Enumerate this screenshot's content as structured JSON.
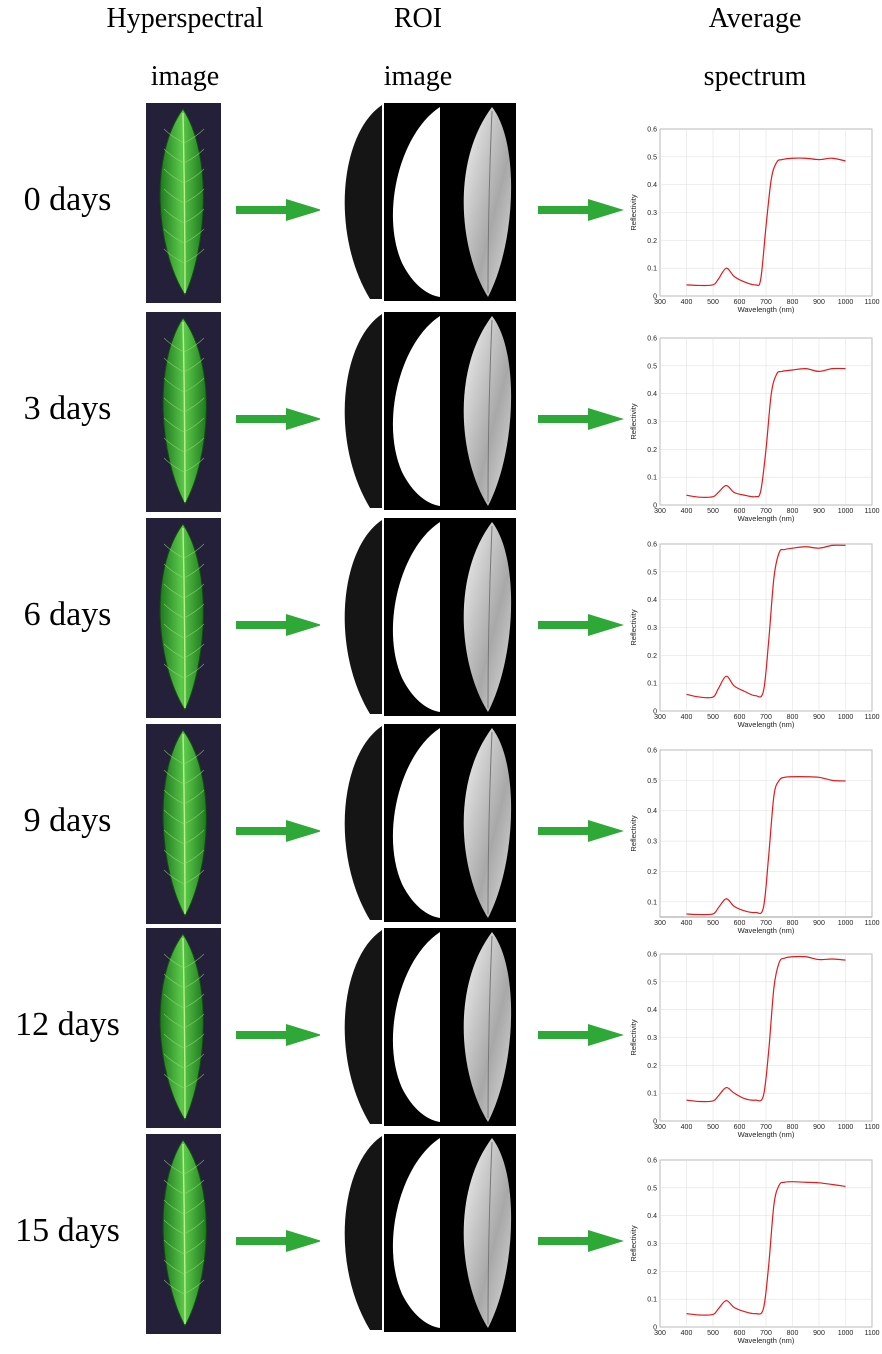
{
  "headers": {
    "col1_line1": "Hyperspectral",
    "col1_line2": "image",
    "col2_line1": "ROI",
    "col2_line2": "image",
    "col3_line1": "Average",
    "col3_line2": "spectrum"
  },
  "colors": {
    "arrow": "#2ea836",
    "spectrum": "#e31a1c",
    "leaf_dark": "#1f7a1f",
    "leaf_light": "#5cc94a",
    "background_photo": "#24203a"
  },
  "rows": [
    {
      "label": "0 days"
    },
    {
      "label": "3 days"
    },
    {
      "label": "6 days"
    },
    {
      "label": "9 days"
    },
    {
      "label": "12 days"
    },
    {
      "label": "15 days"
    }
  ],
  "chart_data": [
    {
      "type": "line",
      "xlabel": "Wavelength (nm)",
      "ylabel": "Reflectivity",
      "xlim": [
        300,
        1100
      ],
      "ylim": [
        0,
        0.6
      ],
      "xticks": [
        "300",
        "400",
        "500",
        "600",
        "700",
        "800",
        "900",
        "1000",
        "1100"
      ],
      "yticks": [
        "0",
        "0.1",
        "0.2",
        "0.3",
        "0.4",
        "0.5",
        "0.6"
      ],
      "grid": true,
      "series": [
        {
          "x": [
            400,
            450,
            500,
            520,
            550,
            580,
            620,
            660,
            680,
            700,
            720,
            740,
            760,
            800,
            850,
            900,
            950,
            1000
          ],
          "y": [
            0.04,
            0.038,
            0.04,
            0.06,
            0.1,
            0.07,
            0.05,
            0.04,
            0.06,
            0.25,
            0.42,
            0.48,
            0.49,
            0.495,
            0.495,
            0.49,
            0.495,
            0.485
          ]
        }
      ]
    },
    {
      "type": "line",
      "xlabel": "Wavelength (nm)",
      "ylabel": "Reflectivity",
      "xlim": [
        300,
        1100
      ],
      "ylim": [
        0,
        0.6
      ],
      "xticks": [
        "300",
        "400",
        "500",
        "600",
        "700",
        "800",
        "900",
        "1000",
        "1100"
      ],
      "yticks": [
        "0",
        "0.1",
        "0.2",
        "0.3",
        "0.4",
        "0.5",
        "0.6"
      ],
      "grid": true,
      "series": [
        {
          "x": [
            400,
            450,
            500,
            520,
            550,
            580,
            620,
            660,
            680,
            700,
            720,
            740,
            760,
            800,
            850,
            900,
            950,
            1000
          ],
          "y": [
            0.035,
            0.028,
            0.03,
            0.045,
            0.07,
            0.045,
            0.035,
            0.03,
            0.05,
            0.2,
            0.4,
            0.47,
            0.48,
            0.485,
            0.49,
            0.48,
            0.49,
            0.49
          ]
        }
      ]
    },
    {
      "type": "line",
      "xlabel": "Wavelength (nm)",
      "ylabel": "Reflectivity",
      "xlim": [
        300,
        1100
      ],
      "ylim": [
        0,
        0.6
      ],
      "xticks": [
        "300",
        "400",
        "500",
        "600",
        "700",
        "800",
        "900",
        "1000",
        "1100"
      ],
      "yticks": [
        "0",
        "0.1",
        "0.2",
        "0.3",
        "0.4",
        "0.5",
        "0.6"
      ],
      "grid": true,
      "series": [
        {
          "x": [
            400,
            450,
            500,
            520,
            550,
            580,
            620,
            660,
            690,
            710,
            730,
            750,
            770,
            800,
            850,
            900,
            950,
            1000
          ],
          "y": [
            0.06,
            0.05,
            0.05,
            0.08,
            0.125,
            0.09,
            0.07,
            0.055,
            0.07,
            0.25,
            0.48,
            0.57,
            0.58,
            0.585,
            0.59,
            0.585,
            0.595,
            0.595
          ]
        }
      ]
    },
    {
      "type": "line",
      "xlabel": "Wavelength (nm)",
      "ylabel": "Reflectivity",
      "xlim": [
        300,
        1100
      ],
      "ylim": [
        0.05,
        0.6
      ],
      "xticks": [
        "300",
        "400",
        "500",
        "600",
        "700",
        "800",
        "900",
        "1000",
        "1100"
      ],
      "yticks": [
        "0.1",
        "0.2",
        "0.3",
        "0.4",
        "0.5",
        "0.6"
      ],
      "grid": true,
      "series": [
        {
          "x": [
            400,
            450,
            500,
            520,
            550,
            580,
            620,
            660,
            690,
            710,
            730,
            750,
            770,
            800,
            850,
            900,
            950,
            1000
          ],
          "y": [
            0.06,
            0.058,
            0.06,
            0.08,
            0.11,
            0.085,
            0.07,
            0.065,
            0.08,
            0.25,
            0.45,
            0.5,
            0.51,
            0.512,
            0.512,
            0.51,
            0.5,
            0.498
          ]
        }
      ]
    },
    {
      "type": "line",
      "xlabel": "Wavelength (nm)",
      "ylabel": "Reflectivity",
      "xlim": [
        300,
        1100
      ],
      "ylim": [
        0,
        0.6
      ],
      "xticks": [
        "300",
        "400",
        "500",
        "600",
        "700",
        "800",
        "900",
        "1000",
        "1100"
      ],
      "yticks": [
        "0",
        "0.1",
        "0.2",
        "0.3",
        "0.4",
        "0.5",
        "0.6"
      ],
      "grid": true,
      "series": [
        {
          "x": [
            400,
            450,
            500,
            520,
            550,
            580,
            620,
            660,
            690,
            710,
            730,
            750,
            770,
            800,
            850,
            900,
            950,
            1000
          ],
          "y": [
            0.075,
            0.07,
            0.072,
            0.09,
            0.12,
            0.1,
            0.08,
            0.075,
            0.09,
            0.25,
            0.48,
            0.57,
            0.585,
            0.59,
            0.59,
            0.58,
            0.582,
            0.578
          ]
        }
      ]
    },
    {
      "type": "line",
      "xlabel": "Wavelength (nm)",
      "ylabel": "Reflectivity",
      "xlim": [
        300,
        1100
      ],
      "ylim": [
        0,
        0.6
      ],
      "xticks": [
        "300",
        "400",
        "500",
        "600",
        "700",
        "800",
        "900",
        "1000",
        "1100"
      ],
      "yticks": [
        "0",
        "0.1",
        "0.2",
        "0.3",
        "0.4",
        "0.5",
        "0.6"
      ],
      "grid": true,
      "series": [
        {
          "x": [
            400,
            450,
            500,
            520,
            550,
            580,
            620,
            660,
            690,
            710,
            730,
            750,
            770,
            800,
            850,
            900,
            950,
            1000
          ],
          "y": [
            0.048,
            0.043,
            0.045,
            0.065,
            0.095,
            0.07,
            0.055,
            0.048,
            0.065,
            0.22,
            0.44,
            0.51,
            0.52,
            0.522,
            0.52,
            0.518,
            0.512,
            0.505
          ]
        }
      ]
    }
  ]
}
